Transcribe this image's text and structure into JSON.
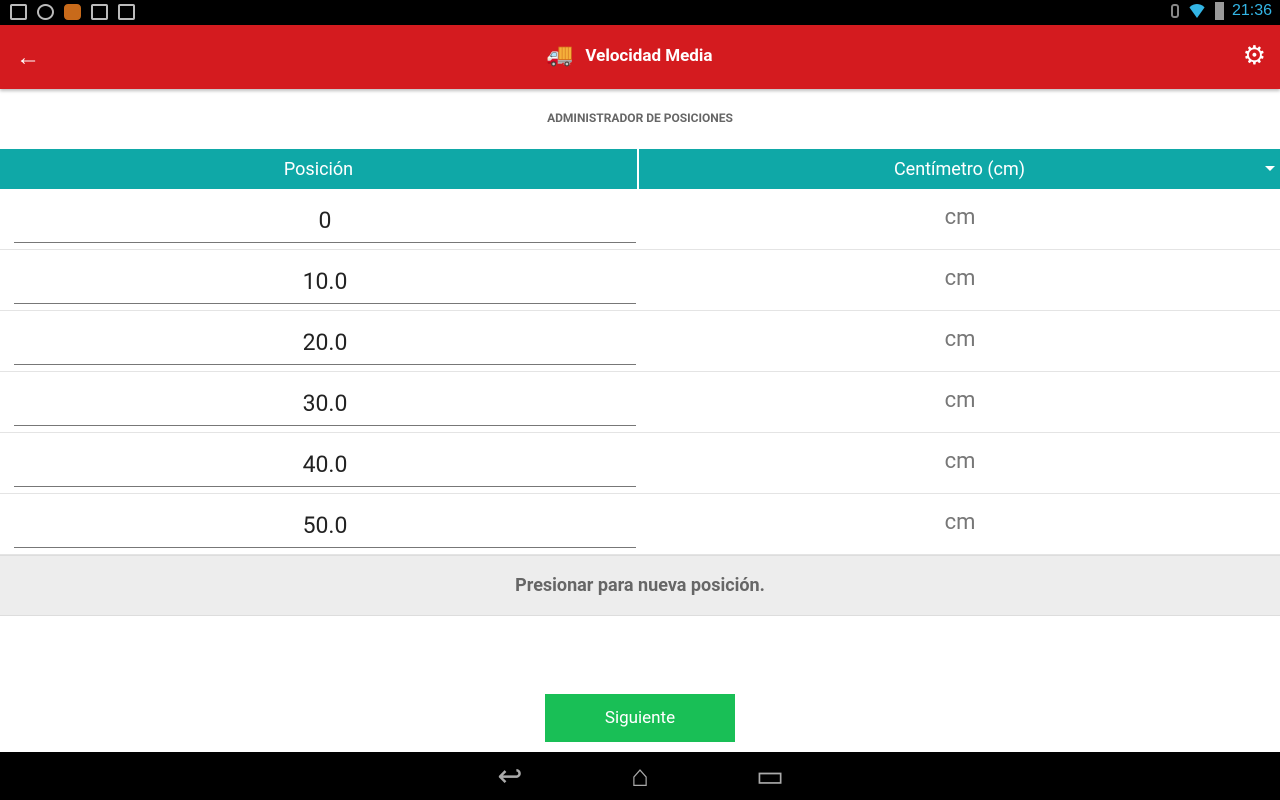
{
  "status": {
    "time": "21:36",
    "icons": [
      "image-icon",
      "chrome-icon",
      "app-icon",
      "briefcase-check-icon",
      "briefcase-play-icon"
    ]
  },
  "appbar": {
    "title": "Velocidad Media",
    "back_icon": "←",
    "truck_icon": "🚚",
    "gear_icon": "⚙"
  },
  "subtitle": "ADMINISTRADOR DE POSICIONES",
  "table": {
    "headers": [
      "Posición",
      "Centímetro (cm)"
    ],
    "rows": [
      {
        "value": "0",
        "unit": "cm"
      },
      {
        "value": "10.0",
        "unit": "cm"
      },
      {
        "value": "20.0",
        "unit": "cm"
      },
      {
        "value": "30.0",
        "unit": "cm"
      },
      {
        "value": "40.0",
        "unit": "cm"
      },
      {
        "value": "50.0",
        "unit": "cm"
      }
    ]
  },
  "add_row": "Presionar para nueva posición.",
  "next_button": "Siguiente",
  "nav": {
    "back": "↩",
    "home": "⌂",
    "recents": "▭"
  },
  "colors": {
    "appbar": "#d41b1f",
    "header": "#0fa8a7",
    "button": "#19bf56"
  }
}
